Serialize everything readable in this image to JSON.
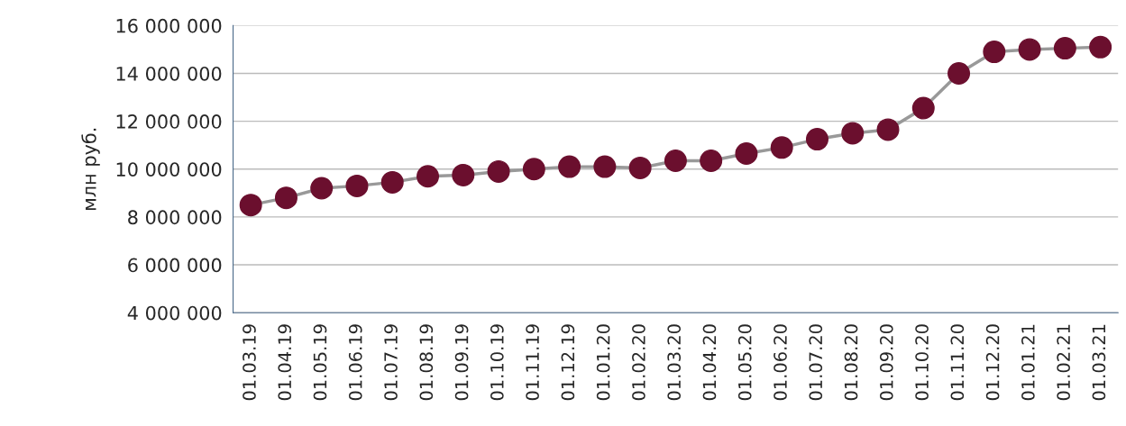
{
  "chart_data": {
    "type": "line",
    "ylabel": "млн руб.",
    "categories": [
      "01.03.19",
      "01.04.19",
      "01.05.19",
      "01.06.19",
      "01.07.19",
      "01.08.19",
      "01.09.19",
      "01.10.19",
      "01.11.19",
      "01.12.19",
      "01.01.20",
      "01.02.20",
      "01.03.20",
      "01.04.20",
      "01.05.20",
      "01.06.20",
      "01.07.20",
      "01.08.20",
      "01.09.20",
      "01.10.20",
      "01.11.20",
      "01.12.20",
      "01.01.21",
      "01.02.21",
      "01.03.21"
    ],
    "series": [
      {
        "color": "#6b0f2e",
        "values": [
          8500000,
          8800000,
          9200000,
          9300000,
          9450000,
          9700000,
          9750000,
          9900000,
          10000000,
          10100000,
          10100000,
          10050000,
          10350000,
          10350000,
          10650000,
          10900000,
          11250000,
          11500000,
          11650000,
          12550000,
          14000000,
          14900000,
          15000000,
          15050000,
          15100000
        ]
      }
    ],
    "ylim": [
      4000000,
      16000000
    ],
    "yticks": [
      {
        "value": 4000000,
        "label": "4 000 000"
      },
      {
        "value": 6000000,
        "label": "6 000 000"
      },
      {
        "value": 8000000,
        "label": "8 000 000"
      },
      {
        "value": 10000000,
        "label": "10 000 000"
      },
      {
        "value": 12000000,
        "label": "12 000 000"
      },
      {
        "value": 14000000,
        "label": "14 000 000"
      },
      {
        "value": 16000000,
        "label": "16 000 000"
      }
    ],
    "grid": "y",
    "marker": "circle",
    "line_style": "solid",
    "legend": false
  }
}
